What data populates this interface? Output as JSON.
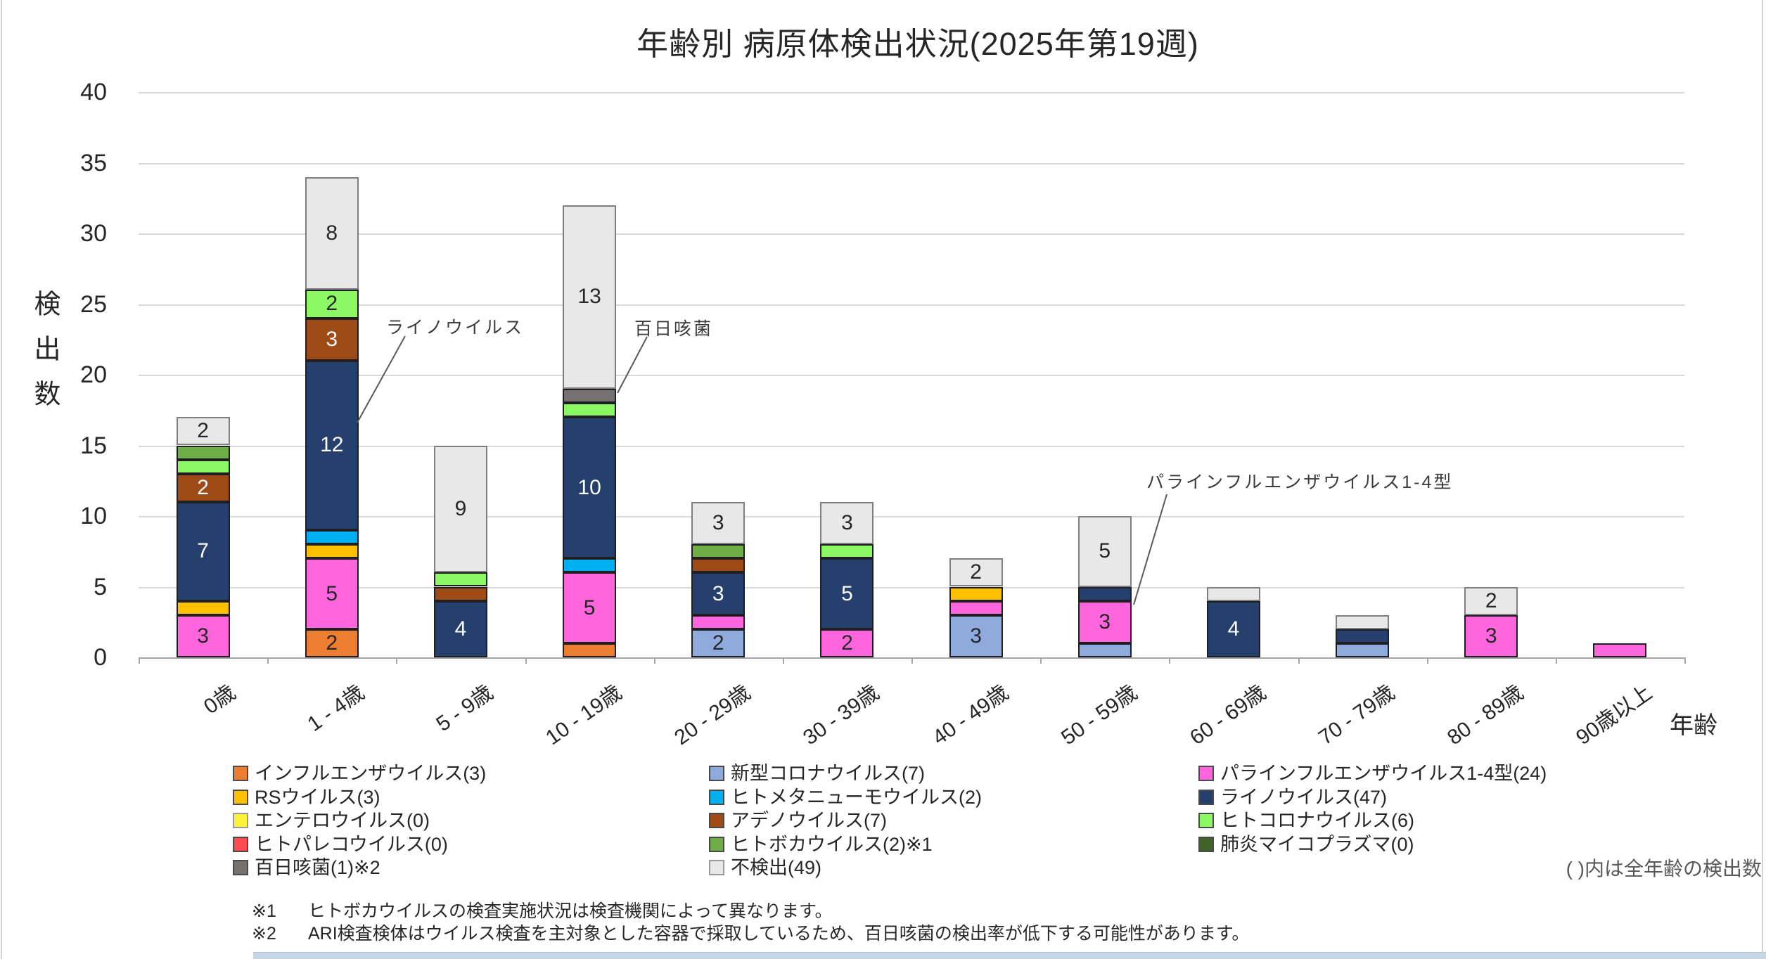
{
  "chart_data": {
    "type": "bar",
    "stacked": true,
    "title": "年齢別 病原体検出状況(2025年第19週)",
    "ylabel": "検出数",
    "xlabel": "年齢",
    "ylim": [
      0,
      40
    ],
    "ytick_step": 5,
    "grid": true,
    "legend_position": "bottom",
    "note": "( )内は全年齢の検出数",
    "categories": [
      "0歳",
      "1 - 4歳",
      "5 - 9歳",
      "10 - 19歳",
      "20 - 29歳",
      "30 - 39歳",
      "40 - 49歳",
      "50 - 59歳",
      "60 - 69歳",
      "70 - 79歳",
      "80 - 89歳",
      "90歳以上"
    ],
    "series": [
      {
        "name": "インフルエンザウイルス",
        "legend_label": "インフルエンザウイルス(3)",
        "total": 3,
        "color": "#ED7D31",
        "values": [
          0,
          2,
          0,
          1,
          0,
          0,
          0,
          0,
          0,
          0,
          0,
          0
        ]
      },
      {
        "name": "新型コロナウイルス",
        "legend_label": "新型コロナウイルス(7)",
        "total": 7,
        "color": "#8FAADC",
        "values": [
          0,
          0,
          0,
          0,
          2,
          0,
          3,
          1,
          0,
          1,
          0,
          0
        ]
      },
      {
        "name": "パラインフルエンザウイルス1-4型",
        "legend_label": "パラインフルエンザウイルス1-4型(24)",
        "total": 24,
        "color": "#FF66DD",
        "values": [
          3,
          5,
          0,
          5,
          1,
          2,
          1,
          3,
          0,
          0,
          3,
          1
        ]
      },
      {
        "name": "RSウイルス",
        "legend_label": "RSウイルス(3)",
        "total": 3,
        "color": "#FFC000",
        "values": [
          1,
          1,
          0,
          0,
          0,
          0,
          1,
          0,
          0,
          0,
          0,
          0
        ]
      },
      {
        "name": "ヒトメタニューモウイルス",
        "legend_label": "ヒトメタニューモウイルス(2)",
        "total": 2,
        "color": "#00B0F0",
        "values": [
          0,
          1,
          0,
          1,
          0,
          0,
          0,
          0,
          0,
          0,
          0,
          0
        ]
      },
      {
        "name": "ライノウイルス",
        "legend_label": "ライノウイルス(47)",
        "total": 47,
        "color": "#26406E",
        "values": [
          7,
          12,
          4,
          10,
          3,
          5,
          0,
          1,
          4,
          1,
          0,
          0
        ]
      },
      {
        "name": "エンテロウイルス",
        "legend_label": "エンテロウイルス(0)",
        "total": 0,
        "color": "#FAF339",
        "values": [
          0,
          0,
          0,
          0,
          0,
          0,
          0,
          0,
          0,
          0,
          0,
          0
        ]
      },
      {
        "name": "アデノウイルス",
        "legend_label": "アデノウイルス(7)",
        "total": 7,
        "color": "#9E4B17",
        "values": [
          2,
          3,
          1,
          0,
          1,
          0,
          0,
          0,
          0,
          0,
          0,
          0
        ]
      },
      {
        "name": "ヒトコロナウイルス",
        "legend_label": "ヒトコロナウイルス(6)",
        "total": 6,
        "color": "#8CF964",
        "values": [
          1,
          2,
          1,
          1,
          0,
          1,
          0,
          0,
          0,
          0,
          0,
          0
        ]
      },
      {
        "name": "ヒトパレコウイルス",
        "legend_label": "ヒトパレコウイルス(0)",
        "total": 0,
        "color": "#FF4B4B",
        "values": [
          0,
          0,
          0,
          0,
          0,
          0,
          0,
          0,
          0,
          0,
          0,
          0
        ]
      },
      {
        "name": "ヒトボカウイルス",
        "legend_label": "ヒトボカウイルス(2)※1",
        "total": 2,
        "color": "#70AD47",
        "values": [
          1,
          0,
          0,
          0,
          1,
          0,
          0,
          0,
          0,
          0,
          0,
          0
        ]
      },
      {
        "name": "肺炎マイコプラズマ",
        "legend_label": "肺炎マイコプラズマ(0)",
        "total": 0,
        "color": "#41632A",
        "values": [
          0,
          0,
          0,
          0,
          0,
          0,
          0,
          0,
          0,
          0,
          0,
          0
        ]
      },
      {
        "name": "百日咳菌",
        "legend_label": "百日咳菌(1)※2",
        "total": 1,
        "color": "#767171",
        "values": [
          0,
          0,
          0,
          1,
          0,
          0,
          0,
          0,
          0,
          0,
          0,
          0
        ]
      },
      {
        "name": "不検出",
        "legend_label": "不検出(49)",
        "total": 49,
        "color": "#E9E8E8",
        "values": [
          2,
          8,
          9,
          13,
          3,
          3,
          2,
          5,
          1,
          1,
          2,
          0
        ]
      }
    ],
    "annotations": [
      {
        "text": "ライノウイルス"
      },
      {
        "text": "百日咳菌"
      },
      {
        "text": "パラインフルエンザウイルス1-4型"
      }
    ],
    "footnotes": [
      {
        "marker": "※1",
        "text": "ヒトボカウイルスの検査実施状況は検査機関によって異なります。"
      },
      {
        "marker": "※2",
        "text": "ARI検査検体はウイルス検査を主対象とした容器で採取しているため、百日咳菌の検出率が低下する可能性があります。"
      }
    ]
  }
}
